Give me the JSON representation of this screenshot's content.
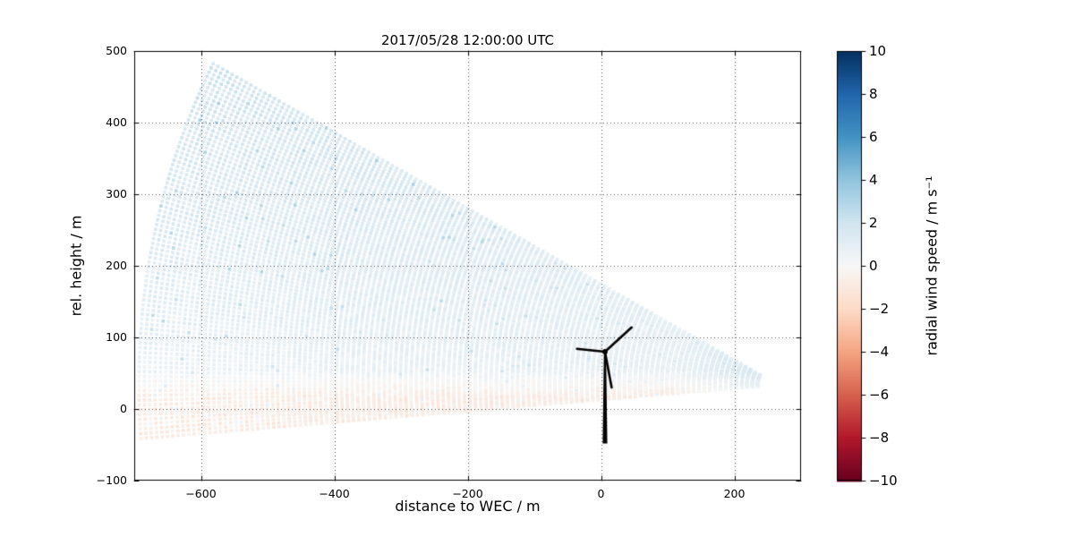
{
  "chart_data": {
    "type": "heatmap",
    "title": "2017/05/28 12:00:00 UTC",
    "xlabel": "distance to WEC / m",
    "ylabel": "rel. height / m",
    "xlim": [
      -700,
      300
    ],
    "ylim": [
      -100,
      500
    ],
    "xticks": [
      -600,
      -400,
      -200,
      0,
      200
    ],
    "yticks": [
      -100,
      0,
      100,
      200,
      300,
      400,
      500
    ],
    "grid": true,
    "grid_style": "dotted",
    "background": "#ffffff",
    "colorbar": {
      "label": "radial wind speed / m s⁻¹",
      "ticks": [
        10,
        8,
        6,
        4,
        2,
        0,
        -2,
        -4,
        -6,
        -8,
        -10
      ],
      "vmin": -10,
      "vmax": 10,
      "colormap": "RdBu",
      "stops": [
        [
          0.0,
          103,
          0,
          31
        ],
        [
          0.1,
          178,
          24,
          43
        ],
        [
          0.2,
          214,
          96,
          77
        ],
        [
          0.3,
          244,
          165,
          130
        ],
        [
          0.4,
          253,
          219,
          199
        ],
        [
          0.5,
          247,
          247,
          247
        ],
        [
          0.6,
          209,
          229,
          240
        ],
        [
          0.7,
          146,
          197,
          222
        ],
        [
          0.8,
          67,
          147,
          195
        ],
        [
          0.9,
          33,
          102,
          172
        ],
        [
          1.0,
          5,
          48,
          97
        ]
      ]
    },
    "scan": {
      "description": "RHI lidar scan fan of radial wind speed, apex at lidar right of WEC, opening toward negative x",
      "origin": {
        "x": 265,
        "y": 34
      },
      "elevation_deg": [
        -4.5,
        28
      ],
      "range_m": [
        30,
        960
      ],
      "range_gate_m": 8,
      "beam_step_deg": 0.4,
      "field": {
        "background_value_ms": 0.7,
        "upper_gain_ms": 1.15,
        "left_gain_ms": 0.5,
        "ground_layer_value_ms": -0.9,
        "ground_layer_top_m": 55,
        "near_range_boost_ms": 1.1,
        "noise_ms": 0.85
      }
    },
    "turbine": {
      "x": 6,
      "hub_height_m": 80,
      "tower_base_m": -48,
      "tower_top_m": 78,
      "blade_tips": [
        [
          46,
          114
        ],
        [
          -36,
          84
        ],
        [
          16,
          30
        ]
      ],
      "color": "#000000"
    }
  }
}
